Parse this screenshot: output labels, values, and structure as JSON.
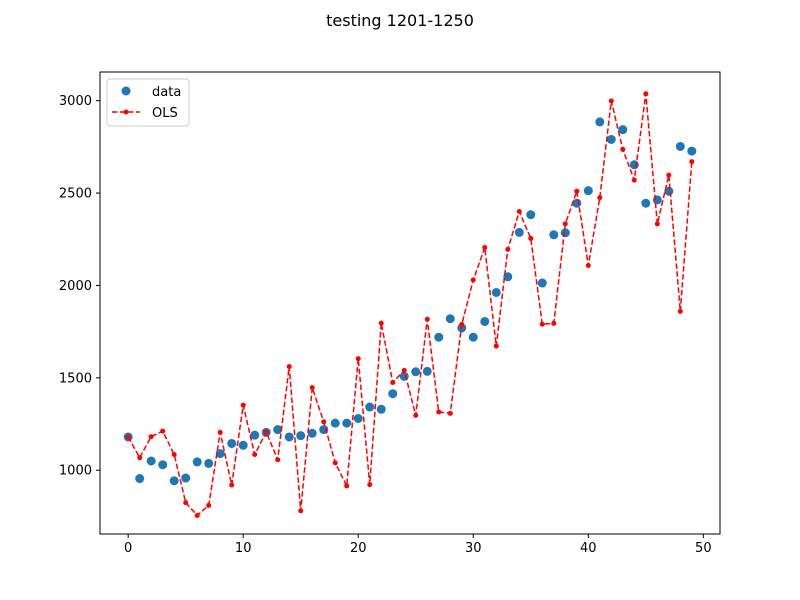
{
  "chart_data": {
    "type": "line",
    "title": "testing 1201-1250",
    "xlabel": "",
    "ylabel": "",
    "xlim": [
      -2.45,
      51.45
    ],
    "ylim": [
      655,
      3155
    ],
    "xticks": [
      0,
      10,
      20,
      30,
      40,
      50
    ],
    "yticks": [
      1000,
      1500,
      2000,
      2500,
      3000
    ],
    "grid": false,
    "legend": "upper left",
    "x": [
      0,
      1,
      2,
      3,
      4,
      5,
      6,
      7,
      8,
      9,
      10,
      11,
      12,
      13,
      14,
      15,
      16,
      17,
      18,
      19,
      20,
      21,
      22,
      23,
      24,
      25,
      26,
      27,
      28,
      29,
      30,
      31,
      32,
      33,
      34,
      35,
      36,
      37,
      38,
      39,
      40,
      41,
      42,
      43,
      44,
      45,
      46,
      47,
      48,
      49
    ],
    "series": [
      {
        "name": "data",
        "style": "markers",
        "color": "#1f77b4",
        "values": [
          1180,
          955,
          1050,
          1030,
          943,
          958,
          1045,
          1037,
          1090,
          1145,
          1135,
          1190,
          1205,
          1220,
          1180,
          1187,
          1200,
          1220,
          1255,
          1255,
          1280,
          1342,
          1330,
          1414,
          1508,
          1533,
          1535,
          1720,
          1820,
          1770,
          1720,
          1805,
          1962,
          2047,
          2287,
          2383,
          2013,
          2274,
          2285,
          2445,
          2513,
          2885,
          2790,
          2843,
          2653,
          2445,
          2463,
          2510,
          2752,
          2727
        ]
      },
      {
        "name": "OLS",
        "style": "dashed-line-markers",
        "color": "#ff0000",
        "values": [
          1180,
          1068,
          1182,
          1212,
          1085,
          825,
          755,
          810,
          1205,
          920,
          1352,
          1085,
          1207,
          1057,
          1561,
          780,
          1447,
          1262,
          1040,
          915,
          1604,
          922,
          1796,
          1475,
          1540,
          1297,
          1817,
          1315,
          1308,
          1789,
          2030,
          2205,
          1672,
          2195,
          2400,
          2255,
          1790,
          1795,
          2333,
          2510,
          2108,
          2475,
          2998,
          2736,
          2570,
          3037,
          2333,
          2597,
          1860,
          2670
        ]
      }
    ]
  }
}
